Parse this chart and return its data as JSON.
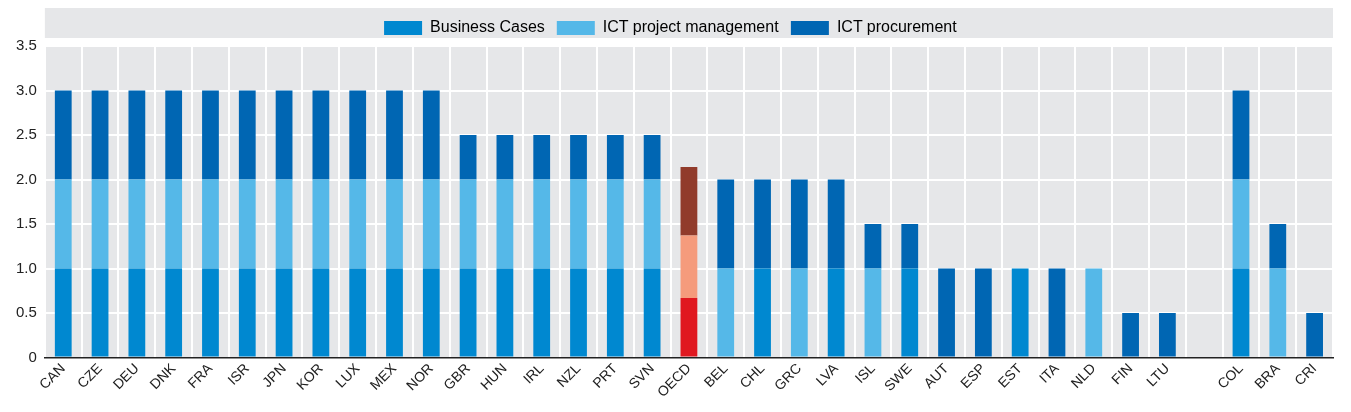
{
  "chart_data": {
    "type": "bar",
    "stacked": true,
    "legend": "top",
    "grid": true,
    "ylim": [
      0,
      3.5
    ],
    "yticks": [
      0,
      {
        "value": 0.5,
        "label": "0.5"
      },
      {
        "value": 1,
        "label": "1.0"
      },
      {
        "value": 1.5,
        "label": "1.5"
      },
      {
        "value": 2,
        "label": "2.0"
      },
      {
        "value": 2.5,
        "label": "2.5"
      },
      {
        "value": 3,
        "label": "3.0"
      },
      {
        "value": 3.5,
        "label": "3.5"
      }
    ],
    "categories": [
      "CAN",
      "CZE",
      "DEU",
      "DNK",
      "FRA",
      "ISR",
      "JPN",
      "KOR",
      "LUX",
      "MEX",
      "NOR",
      "GBR",
      "HUN",
      "IRL",
      "NZL",
      "PRT",
      "SVN",
      "OECD",
      "BEL",
      "CHL",
      "GRC",
      "LVA",
      "ISL",
      "SWE",
      "AUT",
      "ESP",
      "EST",
      "ITA",
      "NLD",
      "FIN",
      "LTU",
      null,
      "COL",
      "BRA",
      "CRI"
    ],
    "series": [
      {
        "name": "Business Cases",
        "color": "#0088d0",
        "colors": [
          "#0088d0",
          "#0088d0",
          "#0088d0",
          "#0088d0",
          "#0088d0",
          "#0088d0",
          "#0088d0",
          "#0088d0",
          "#0088d0",
          "#0088d0",
          "#0088d0",
          "#0088d0",
          "#0088d0",
          "#0088d0",
          "#0088d0",
          "#0088d0",
          "#0088d0",
          "#e0181f",
          "#0088d0",
          "#0088d0",
          "#0088d0",
          "#0088d0",
          "#0088d0",
          "#0088d0",
          "#0088d0",
          "#0088d0",
          "#0088d0",
          "#0088d0",
          "#0088d0",
          "#0088d0",
          "#0088d0",
          "#0088d0",
          "#0088d0",
          "#0088d0",
          "#0088d0"
        ],
        "values": [
          1,
          1,
          1,
          1,
          1,
          1,
          1,
          1,
          1,
          1,
          1,
          1,
          1,
          1,
          1,
          1,
          1,
          0.67,
          0,
          1,
          0,
          1,
          0,
          1,
          0,
          0,
          1,
          0,
          0,
          0,
          0,
          null,
          1,
          0,
          0
        ]
      },
      {
        "name": "ICT project management",
        "color": "#55b8e8",
        "colors": [
          "#55b8e8",
          "#55b8e8",
          "#55b8e8",
          "#55b8e8",
          "#55b8e8",
          "#55b8e8",
          "#55b8e8",
          "#55b8e8",
          "#55b8e8",
          "#55b8e8",
          "#55b8e8",
          "#55b8e8",
          "#55b8e8",
          "#55b8e8",
          "#55b8e8",
          "#55b8e8",
          "#55b8e8",
          "#f59b7c",
          "#55b8e8",
          "#55b8e8",
          "#55b8e8",
          "#55b8e8",
          "#55b8e8",
          "#55b8e8",
          "#55b8e8",
          "#55b8e8",
          "#55b8e8",
          "#55b8e8",
          "#55b8e8",
          "#55b8e8",
          "#55b8e8",
          "#55b8e8",
          "#55b8e8",
          "#55b8e8",
          "#55b8e8"
        ],
        "values": [
          1,
          1,
          1,
          1,
          1,
          1,
          1,
          1,
          1,
          1,
          1,
          1,
          1,
          1,
          1,
          1,
          1,
          0.7,
          1,
          0,
          1,
          0,
          1,
          0,
          0,
          0,
          0,
          0,
          1,
          0,
          0,
          null,
          1,
          1,
          0
        ]
      },
      {
        "name": "ICT procurement",
        "color": "#0066b3",
        "colors": [
          "#0066b3",
          "#0066b3",
          "#0066b3",
          "#0066b3",
          "#0066b3",
          "#0066b3",
          "#0066b3",
          "#0066b3",
          "#0066b3",
          "#0066b3",
          "#0066b3",
          "#0066b3",
          "#0066b3",
          "#0066b3",
          "#0066b3",
          "#0066b3",
          "#0066b3",
          "#913b2b",
          "#0066b3",
          "#0066b3",
          "#0066b3",
          "#0066b3",
          "#0066b3",
          "#0066b3",
          "#0066b3",
          "#0066b3",
          "#0066b3",
          "#0066b3",
          "#0066b3",
          "#0066b3",
          "#0066b3",
          "#0066b3",
          "#0066b3",
          "#0066b3",
          "#0066b3"
        ],
        "values": [
          1,
          1,
          1,
          1,
          1,
          1,
          1,
          1,
          1,
          1,
          1,
          0.5,
          0.5,
          0.5,
          0.5,
          0.5,
          0.5,
          0.77,
          1,
          1,
          1,
          1,
          0.5,
          0.5,
          1,
          1,
          0,
          1,
          0,
          0.5,
          0.5,
          null,
          1,
          0.5,
          0.5
        ]
      }
    ]
  }
}
